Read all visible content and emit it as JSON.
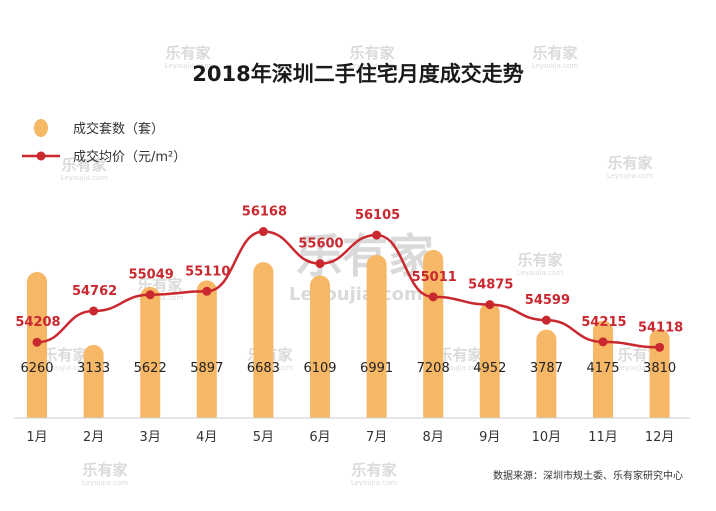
{
  "chart_data": {
    "type": "bar",
    "title": "2018年深圳二手住宅月度成交走势",
    "categories": [
      "1月",
      "2月",
      "3月",
      "4月",
      "5月",
      "6月",
      "7月",
      "8月",
      "9月",
      "10月",
      "11月",
      "12月"
    ],
    "series": [
      {
        "name": "成交套数（套）",
        "type": "bar",
        "color": "#f6b766",
        "values": [
          6260,
          3133,
          5622,
          5897,
          6683,
          6109,
          6991,
          7208,
          4952,
          3787,
          4175,
          3810
        ]
      },
      {
        "name": "成交均价（元/m²）",
        "type": "line",
        "color": "#c9282f",
        "values": [
          54208,
          54762,
          55049,
          55110,
          56168,
          55600,
          56105,
          55011,
          54875,
          54599,
          54215,
          54118
        ]
      }
    ],
    "bar_ylim": [
      0,
      7500
    ],
    "line_ylim": [
      50000,
      57000
    ],
    "grid": false,
    "legend_placement": "top-left",
    "source": "数据来源：深圳市规土委、乐有家研究中心"
  },
  "watermark": {
    "brand": "乐有家",
    "domain": "Leyoujia.com"
  }
}
